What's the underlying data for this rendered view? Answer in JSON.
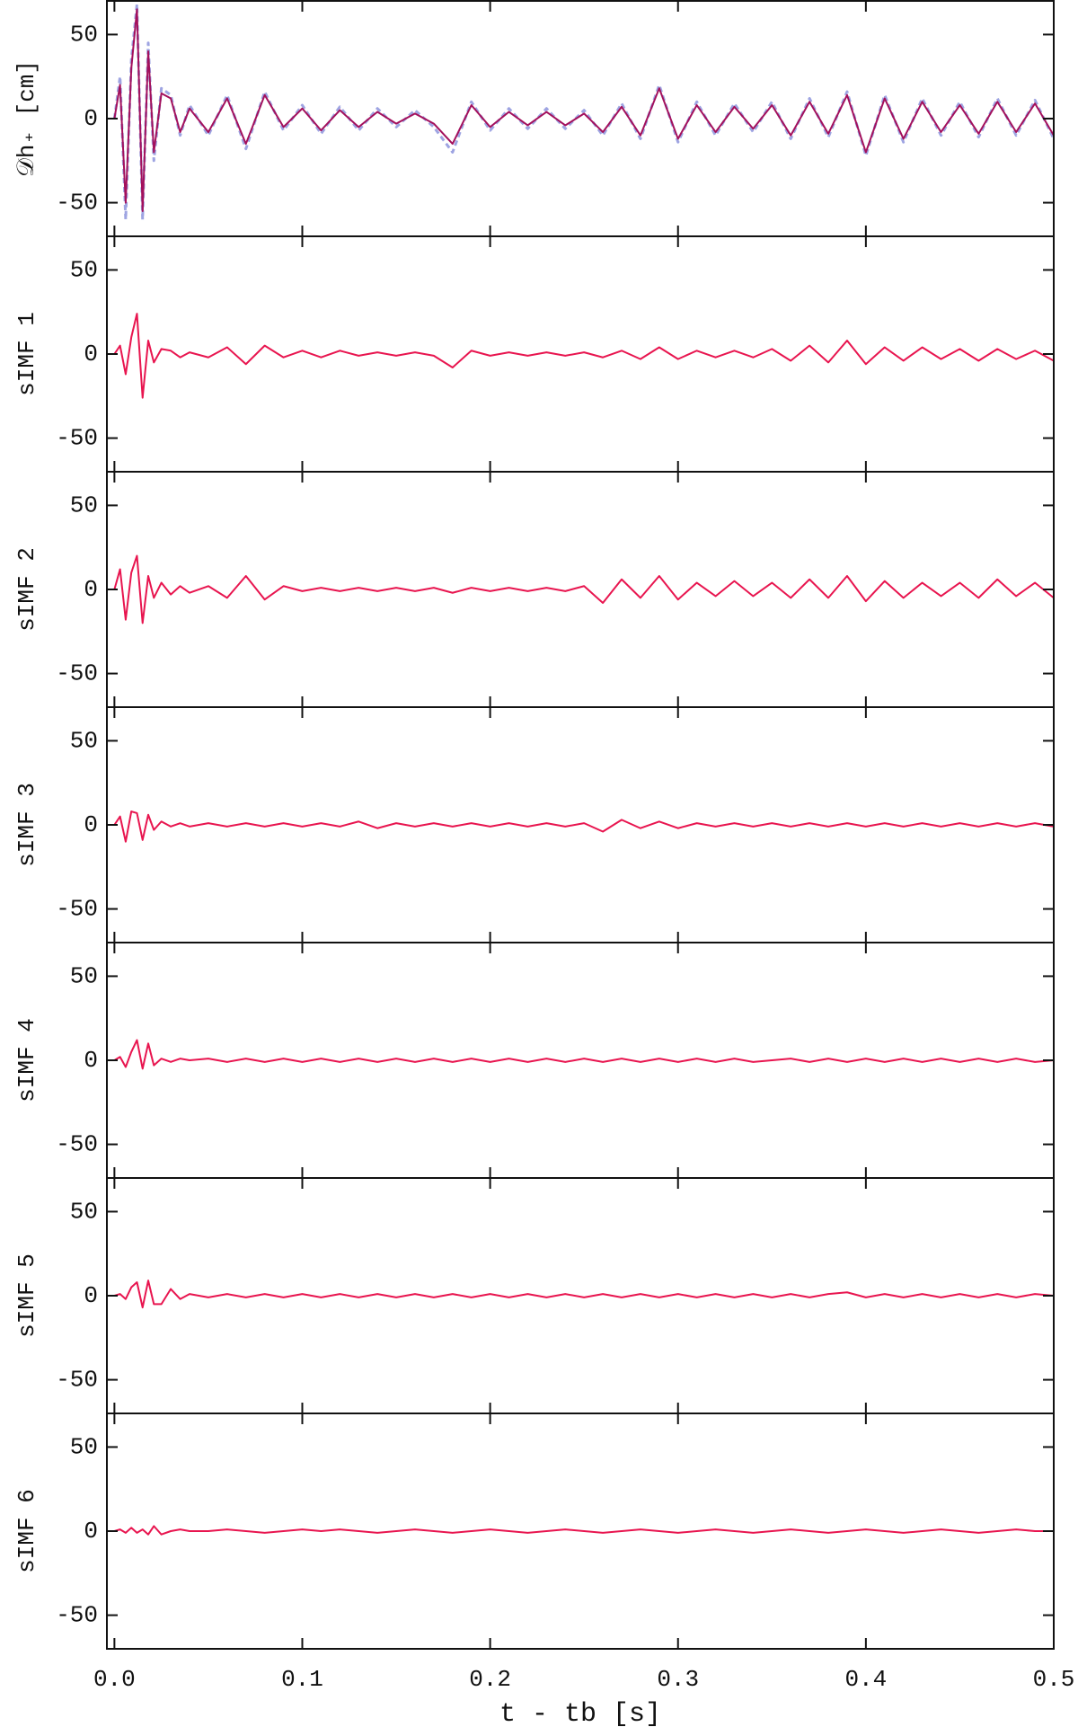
{
  "chart_data": [
    {
      "type": "line",
      "ylabel": "𝒟h₊ [cm]",
      "xlim": [
        -0.004,
        0.5
      ],
      "ylim": [
        -70,
        70
      ],
      "yticks": [
        -50,
        0,
        50
      ],
      "xticks": [
        {
          "value": 0,
          "label": "0.0"
        },
        0.1,
        0.2,
        0.3,
        0.4,
        0.5
      ],
      "xtick_labels": false,
      "x": [
        0,
        0.003,
        0.006,
        0.009,
        0.012,
        0.015,
        0.018,
        0.021,
        0.025,
        0.03,
        0.035,
        0.04,
        0.05,
        0.06,
        0.07,
        0.08,
        0.09,
        0.1,
        0.11,
        0.12,
        0.13,
        0.14,
        0.15,
        0.16,
        0.17,
        0.18,
        0.19,
        0.2,
        0.21,
        0.22,
        0.23,
        0.24,
        0.25,
        0.26,
        0.27,
        0.28,
        0.29,
        0.3,
        0.31,
        0.32,
        0.33,
        0.34,
        0.35,
        0.36,
        0.37,
        0.38,
        0.39,
        0.4,
        0.41,
        0.42,
        0.43,
        0.44,
        0.45,
        0.46,
        0.47,
        0.48,
        0.49,
        0.5
      ],
      "series": [
        {
          "color": "#9ea4e2",
          "dashed": true,
          "values": [
            0,
            25,
            -60,
            35,
            68,
            -60,
            45,
            -25,
            18,
            14,
            -10,
            8,
            -10,
            14,
            -18,
            16,
            -7,
            8,
            -9,
            7,
            -7,
            6,
            -5,
            5,
            -5,
            -20,
            10,
            -7,
            6,
            -6,
            6,
            -6,
            5,
            -10,
            9,
            -12,
            20,
            -14,
            10,
            -10,
            9,
            -8,
            10,
            -12,
            12,
            -11,
            16,
            -22,
            14,
            -14,
            12,
            -10,
            10,
            -11,
            12,
            -10,
            11,
            -12
          ]
        },
        {
          "color": "#a3105c",
          "dashed": false,
          "values": [
            0,
            20,
            -50,
            30,
            65,
            -55,
            40,
            -20,
            15,
            12,
            -8,
            6,
            -8,
            12,
            -15,
            14,
            -5,
            6,
            -7,
            5,
            -5,
            4,
            -3,
            3,
            -3,
            -15,
            8,
            -5,
            4,
            -4,
            4,
            -4,
            3,
            -8,
            7,
            -10,
            18,
            -12,
            8,
            -8,
            7,
            -6,
            8,
            -10,
            10,
            -9,
            14,
            -20,
            12,
            -12,
            10,
            -8,
            8,
            -9,
            10,
            -8,
            9,
            -10
          ]
        }
      ]
    },
    {
      "type": "line",
      "ylabel": "sIMF 1",
      "xlim": [
        -0.004,
        0.5
      ],
      "ylim": [
        -70,
        70
      ],
      "yticks": [
        -50,
        0,
        50
      ],
      "xticks": [
        {
          "value": 0,
          "label": "0.0"
        },
        0.1,
        0.2,
        0.3,
        0.4,
        0.5
      ],
      "xtick_labels": false,
      "x": [
        0,
        0.003,
        0.006,
        0.009,
        0.012,
        0.015,
        0.018,
        0.021,
        0.025,
        0.03,
        0.035,
        0.04,
        0.05,
        0.06,
        0.07,
        0.08,
        0.09,
        0.1,
        0.11,
        0.12,
        0.13,
        0.14,
        0.15,
        0.16,
        0.17,
        0.18,
        0.19,
        0.2,
        0.21,
        0.22,
        0.23,
        0.24,
        0.25,
        0.26,
        0.27,
        0.28,
        0.29,
        0.3,
        0.31,
        0.32,
        0.33,
        0.34,
        0.35,
        0.36,
        0.37,
        0.38,
        0.39,
        0.4,
        0.41,
        0.42,
        0.43,
        0.44,
        0.45,
        0.46,
        0.47,
        0.48,
        0.49,
        0.5
      ],
      "series": [
        {
          "color": "#e8154f",
          "dashed": false,
          "values": [
            0,
            5,
            -12,
            10,
            24,
            -26,
            8,
            -5,
            3,
            2,
            -2,
            1,
            -2,
            4,
            -6,
            5,
            -2,
            2,
            -2,
            2,
            -1,
            1,
            -1,
            1,
            -1,
            -8,
            2,
            -1,
            1,
            -1,
            1,
            -1,
            1,
            -2,
            2,
            -3,
            4,
            -3,
            2,
            -2,
            2,
            -2,
            3,
            -4,
            5,
            -5,
            8,
            -6,
            4,
            -4,
            4,
            -3,
            3,
            -4,
            3,
            -3,
            2,
            -4
          ]
        }
      ]
    },
    {
      "type": "line",
      "ylabel": "sIMF 2",
      "xlim": [
        -0.004,
        0.5
      ],
      "ylim": [
        -70,
        70
      ],
      "yticks": [
        -50,
        0,
        50
      ],
      "xticks": [
        {
          "value": 0,
          "label": "0.0"
        },
        0.1,
        0.2,
        0.3,
        0.4,
        0.5
      ],
      "xtick_labels": false,
      "x": [
        0,
        0.003,
        0.006,
        0.009,
        0.012,
        0.015,
        0.018,
        0.021,
        0.025,
        0.03,
        0.035,
        0.04,
        0.05,
        0.06,
        0.07,
        0.08,
        0.09,
        0.1,
        0.11,
        0.12,
        0.13,
        0.14,
        0.15,
        0.16,
        0.17,
        0.18,
        0.19,
        0.2,
        0.21,
        0.22,
        0.23,
        0.24,
        0.25,
        0.26,
        0.27,
        0.28,
        0.29,
        0.3,
        0.31,
        0.32,
        0.33,
        0.34,
        0.35,
        0.36,
        0.37,
        0.38,
        0.39,
        0.4,
        0.41,
        0.42,
        0.43,
        0.44,
        0.45,
        0.46,
        0.47,
        0.48,
        0.49,
        0.5
      ],
      "series": [
        {
          "color": "#e8154f",
          "dashed": false,
          "values": [
            0,
            12,
            -18,
            10,
            20,
            -20,
            8,
            -5,
            4,
            -3,
            2,
            -2,
            2,
            -5,
            8,
            -6,
            2,
            -1,
            1,
            -1,
            1,
            -1,
            1,
            -1,
            1,
            -2,
            1,
            -1,
            1,
            -1,
            1,
            -1,
            2,
            -8,
            6,
            -5,
            8,
            -6,
            4,
            -4,
            5,
            -4,
            4,
            -5,
            6,
            -5,
            8,
            -7,
            5,
            -5,
            4,
            -4,
            4,
            -5,
            6,
            -4,
            4,
            -5
          ]
        }
      ]
    },
    {
      "type": "line",
      "ylabel": "sIMF 3",
      "xlim": [
        -0.004,
        0.5
      ],
      "ylim": [
        -70,
        70
      ],
      "yticks": [
        -50,
        0,
        50
      ],
      "xticks": [
        {
          "value": 0,
          "label": "0.0"
        },
        0.1,
        0.2,
        0.3,
        0.4,
        0.5
      ],
      "xtick_labels": false,
      "x": [
        0,
        0.003,
        0.006,
        0.009,
        0.012,
        0.015,
        0.018,
        0.021,
        0.025,
        0.03,
        0.035,
        0.04,
        0.05,
        0.06,
        0.07,
        0.08,
        0.09,
        0.1,
        0.11,
        0.12,
        0.13,
        0.14,
        0.15,
        0.16,
        0.17,
        0.18,
        0.19,
        0.2,
        0.21,
        0.22,
        0.23,
        0.24,
        0.25,
        0.26,
        0.27,
        0.28,
        0.29,
        0.3,
        0.31,
        0.32,
        0.33,
        0.34,
        0.35,
        0.36,
        0.37,
        0.38,
        0.39,
        0.4,
        0.41,
        0.42,
        0.43,
        0.44,
        0.45,
        0.46,
        0.47,
        0.48,
        0.49,
        0.5
      ],
      "series": [
        {
          "color": "#e8154f",
          "dashed": false,
          "values": [
            0,
            5,
            -10,
            8,
            7,
            -9,
            6,
            -3,
            2,
            -1,
            1,
            -1,
            1,
            -1,
            1,
            -1,
            1,
            -1,
            1,
            -1,
            2,
            -2,
            1,
            -1,
            1,
            -1,
            1,
            -1,
            1,
            -1,
            1,
            -1,
            1,
            -4,
            3,
            -2,
            2,
            -2,
            1,
            -1,
            1,
            -1,
            1,
            -1,
            1,
            -1,
            1,
            -1,
            1,
            -1,
            1,
            -1,
            1,
            -1,
            1,
            -1,
            1,
            -1
          ]
        }
      ]
    },
    {
      "type": "line",
      "ylabel": "sIMF 4",
      "xlim": [
        -0.004,
        0.5
      ],
      "ylim": [
        -70,
        70
      ],
      "yticks": [
        -50,
        0,
        50
      ],
      "xticks": [
        {
          "value": 0,
          "label": "0.0"
        },
        0.1,
        0.2,
        0.3,
        0.4,
        0.5
      ],
      "xtick_labels": false,
      "x": [
        0,
        0.003,
        0.006,
        0.009,
        0.012,
        0.015,
        0.018,
        0.021,
        0.025,
        0.03,
        0.035,
        0.04,
        0.05,
        0.06,
        0.07,
        0.08,
        0.09,
        0.1,
        0.11,
        0.12,
        0.13,
        0.14,
        0.15,
        0.16,
        0.17,
        0.18,
        0.19,
        0.2,
        0.21,
        0.22,
        0.23,
        0.24,
        0.25,
        0.26,
        0.27,
        0.28,
        0.29,
        0.3,
        0.31,
        0.32,
        0.33,
        0.34,
        0.35,
        0.36,
        0.37,
        0.38,
        0.39,
        0.4,
        0.41,
        0.42,
        0.43,
        0.44,
        0.45,
        0.46,
        0.47,
        0.48,
        0.49,
        0.5
      ],
      "series": [
        {
          "color": "#e8154f",
          "dashed": false,
          "values": [
            0,
            2,
            -4,
            5,
            12,
            -5,
            10,
            -3,
            1,
            -1,
            1,
            0,
            1,
            -1,
            1,
            -1,
            1,
            -1,
            1,
            -1,
            1,
            -1,
            1,
            -1,
            1,
            -1,
            1,
            -1,
            1,
            -1,
            1,
            -1,
            1,
            -1,
            1,
            -1,
            1,
            -1,
            1,
            -1,
            1,
            -1,
            0,
            1,
            -1,
            1,
            -1,
            1,
            -1,
            1,
            -1,
            1,
            -1,
            1,
            -1,
            1,
            -1,
            0
          ]
        }
      ]
    },
    {
      "type": "line",
      "ylabel": "sIMF 5",
      "xlim": [
        -0.004,
        0.5
      ],
      "ylim": [
        -70,
        70
      ],
      "yticks": [
        -50,
        0,
        50
      ],
      "xticks": [
        {
          "value": 0,
          "label": "0.0"
        },
        0.1,
        0.2,
        0.3,
        0.4,
        0.5
      ],
      "xtick_labels": false,
      "x": [
        0,
        0.003,
        0.006,
        0.009,
        0.012,
        0.015,
        0.018,
        0.021,
        0.025,
        0.03,
        0.035,
        0.04,
        0.05,
        0.06,
        0.07,
        0.08,
        0.09,
        0.1,
        0.11,
        0.12,
        0.13,
        0.14,
        0.15,
        0.16,
        0.17,
        0.18,
        0.19,
        0.2,
        0.21,
        0.22,
        0.23,
        0.24,
        0.25,
        0.26,
        0.27,
        0.28,
        0.29,
        0.3,
        0.31,
        0.32,
        0.33,
        0.34,
        0.35,
        0.36,
        0.37,
        0.38,
        0.39,
        0.4,
        0.41,
        0.42,
        0.43,
        0.44,
        0.45,
        0.46,
        0.47,
        0.48,
        0.49,
        0.5
      ],
      "series": [
        {
          "color": "#e8154f",
          "dashed": false,
          "values": [
            0,
            1,
            -2,
            5,
            8,
            -7,
            9,
            -5,
            -5,
            4,
            -2,
            1,
            -1,
            1,
            -1,
            1,
            -1,
            1,
            -1,
            1,
            -1,
            1,
            -1,
            1,
            -1,
            1,
            -1,
            1,
            -1,
            1,
            -1,
            1,
            -1,
            1,
            -1,
            1,
            -1,
            1,
            -1,
            1,
            -1,
            1,
            -1,
            1,
            -1,
            1,
            2,
            -1,
            1,
            -1,
            1,
            -1,
            1,
            -1,
            1,
            -1,
            1,
            0
          ]
        }
      ]
    },
    {
      "type": "line",
      "ylabel": "sIMF 6",
      "xlim": [
        -0.004,
        0.5
      ],
      "ylim": [
        -70,
        70
      ],
      "yticks": [
        -50,
        0,
        50
      ],
      "xticks": [
        {
          "value": 0,
          "label": "0.0"
        },
        0.1,
        0.2,
        0.3,
        0.4,
        0.5
      ],
      "xtick_labels": true,
      "xlabel": "t - tb [s]",
      "x": [
        0,
        0.003,
        0.006,
        0.009,
        0.012,
        0.015,
        0.018,
        0.021,
        0.025,
        0.03,
        0.035,
        0.04,
        0.05,
        0.06,
        0.07,
        0.08,
        0.09,
        0.1,
        0.11,
        0.12,
        0.13,
        0.14,
        0.15,
        0.16,
        0.17,
        0.18,
        0.19,
        0.2,
        0.21,
        0.22,
        0.23,
        0.24,
        0.25,
        0.26,
        0.27,
        0.28,
        0.29,
        0.3,
        0.31,
        0.32,
        0.33,
        0.34,
        0.35,
        0.36,
        0.37,
        0.38,
        0.39,
        0.4,
        0.41,
        0.42,
        0.43,
        0.44,
        0.45,
        0.46,
        0.47,
        0.48,
        0.49,
        0.5
      ],
      "series": [
        {
          "color": "#e8154f",
          "dashed": false,
          "values": [
            0,
            1,
            -1,
            2,
            -1,
            1,
            -2,
            3,
            -2,
            0,
            1,
            0,
            0,
            1,
            0,
            -1,
            0,
            1,
            0,
            1,
            0,
            -1,
            0,
            1,
            0,
            -1,
            0,
            1,
            0,
            -1,
            0,
            1,
            0,
            -1,
            0,
            1,
            0,
            -1,
            0,
            1,
            0,
            -1,
            0,
            1,
            0,
            -1,
            0,
            1,
            0,
            -1,
            0,
            1,
            0,
            -1,
            0,
            1,
            0,
            0
          ]
        }
      ]
    }
  ]
}
